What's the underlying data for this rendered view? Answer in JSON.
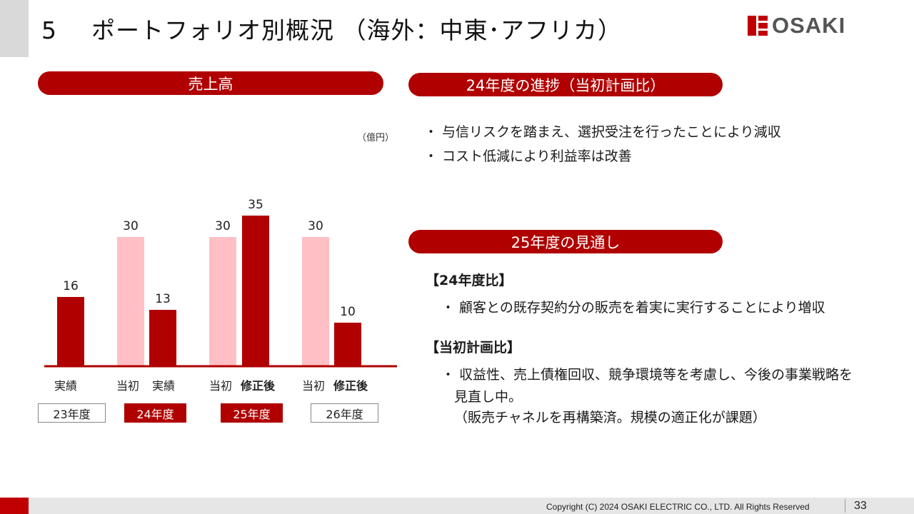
{
  "header": {
    "section_number": "5",
    "title": "ポートフォリオ別概況 （海外：中東･アフリカ）",
    "logo_text": "OSAKI"
  },
  "left": {
    "pill": "売上高",
    "unit": "（億円）"
  },
  "chart_data": {
    "type": "bar",
    "unit": "（億円）",
    "ylim": [
      0,
      40
    ],
    "groups": [
      {
        "year": "23年度",
        "bars": [
          {
            "label": "実績",
            "value": 16,
            "kind": "actual"
          }
        ]
      },
      {
        "year": "24年度",
        "bars": [
          {
            "label": "当初",
            "value": 30,
            "kind": "plan"
          },
          {
            "label": "実績",
            "value": 13,
            "kind": "actual"
          }
        ]
      },
      {
        "year": "25年度",
        "bars": [
          {
            "label": "当初",
            "value": 30,
            "kind": "plan"
          },
          {
            "label": "修正後",
            "value": 35,
            "kind": "actual"
          }
        ]
      },
      {
        "year": "26年度",
        "bars": [
          {
            "label": "当初",
            "value": 30,
            "kind": "plan"
          },
          {
            "label": "修正後",
            "value": 10,
            "kind": "actual"
          }
        ]
      }
    ],
    "colors": {
      "actual": "#b00000",
      "plan": "#ffbfc4",
      "baseline": "#b00000"
    }
  },
  "progress": {
    "pill": "24年度の進捗（当初計画比）",
    "bullets": [
      "・ 与信リスクを踏まえ、選択受注を行ったことにより減収",
      "・ コスト低減により利益率は改善"
    ]
  },
  "outlook": {
    "pill": "25年度の見通し",
    "vs_prev_heading": "【24年度比】",
    "vs_prev_bullet": "・ 顧客との既存契約分の販売を着実に実行することにより増収",
    "vs_plan_heading": "【当初計画比】",
    "vs_plan_bullet_line1": "・ 収益性、売上債権回収、競争環境等を考慮し、今後の事業戦略を",
    "vs_plan_bullet_line2": "見直し中。",
    "vs_plan_bullet_line3": "（販売チャネルを再構築済。規模の適正化が課題）"
  },
  "footer": {
    "copyright": "Copyright (C) 2024 OSAKI ELECTRIC CO., LTD. All Rights Reserved",
    "page": "33"
  }
}
